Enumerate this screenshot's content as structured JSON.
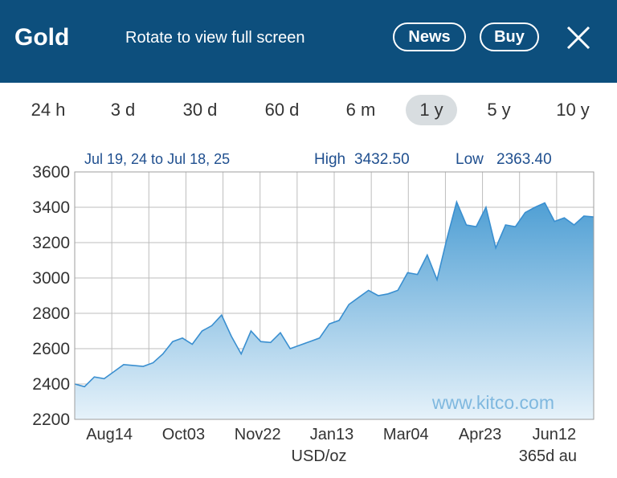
{
  "header": {
    "title": "Gold",
    "hint": "Rotate to view full screen",
    "news_label": "News",
    "buy_label": "Buy",
    "close_icon": "close-icon"
  },
  "ranges": [
    {
      "label": "24 h",
      "active": false
    },
    {
      "label": "3 d",
      "active": false
    },
    {
      "label": "30 d",
      "active": false
    },
    {
      "label": "60 d",
      "active": false
    },
    {
      "label": "6 m",
      "active": false
    },
    {
      "label": "1 y",
      "active": true
    },
    {
      "label": "5 y",
      "active": false
    },
    {
      "label": "10 y",
      "active": false
    }
  ],
  "colors": {
    "header_bg": "#0d4f7d",
    "line": "#3a8fd0",
    "fill_top": "#4f9fd4",
    "fill_bottom": "#e6f2fa",
    "grid": "#bdbdbd",
    "label_blue": "#1f4f8f"
  },
  "chart_data": {
    "type": "area",
    "date_range": "Jul 19, 24 to Jul 18, 25",
    "high_label": "High",
    "high": "3432.50",
    "low_label": "Low",
    "low": "2363.40",
    "watermark": "www.kitco.com",
    "xlabel": "USD/oz",
    "period_note": "365d au",
    "ylim": [
      2200,
      3600
    ],
    "yticks": [
      "3600",
      "3400",
      "3200",
      "3000",
      "2800",
      "2600",
      "2400",
      "2200"
    ],
    "xticks": [
      "Aug14",
      "Oct03",
      "Nov22",
      "Jan13",
      "Mar04",
      "Apr23",
      "Jun12"
    ],
    "grid": true,
    "series": [
      {
        "points": [
          [
            "Jul 19",
            2400
          ],
          [
            "Jul 26",
            2385
          ],
          [
            "Aug 02",
            2440
          ],
          [
            "Aug 09",
            2430
          ],
          [
            "Aug 14",
            2470
          ],
          [
            "Aug 21",
            2510
          ],
          [
            "Aug 28",
            2505
          ],
          [
            "Sep 04",
            2500
          ],
          [
            "Sep 11",
            2520
          ],
          [
            "Sep 18",
            2570
          ],
          [
            "Sep 25",
            2640
          ],
          [
            "Oct 03",
            2660
          ],
          [
            "Oct 10",
            2625
          ],
          [
            "Oct 17",
            2700
          ],
          [
            "Oct 24",
            2730
          ],
          [
            "Oct 30",
            2790
          ],
          [
            "Nov 05",
            2670
          ],
          [
            "Nov 14",
            2570
          ],
          [
            "Nov 22",
            2700
          ],
          [
            "Nov 29",
            2640
          ],
          [
            "Dec 06",
            2635
          ],
          [
            "Dec 12",
            2690
          ],
          [
            "Dec 19",
            2600
          ],
          [
            "Dec 27",
            2620
          ],
          [
            "Jan 06",
            2640
          ],
          [
            "Jan 13",
            2660
          ],
          [
            "Jan 21",
            2740
          ],
          [
            "Jan 28",
            2760
          ],
          [
            "Feb 04",
            2850
          ],
          [
            "Feb 11",
            2890
          ],
          [
            "Feb 18",
            2930
          ],
          [
            "Feb 25",
            2900
          ],
          [
            "Mar 04",
            2910
          ],
          [
            "Mar 11",
            2930
          ],
          [
            "Mar 18",
            3030
          ],
          [
            "Mar 25",
            3020
          ],
          [
            "Apr 01",
            3130
          ],
          [
            "Apr 08",
            2990
          ],
          [
            "Apr 14",
            3220
          ],
          [
            "Apr 22",
            3430
          ],
          [
            "Apr 23",
            3300
          ],
          [
            "Apr 30",
            3290
          ],
          [
            "May 07",
            3400
          ],
          [
            "May 14",
            3170
          ],
          [
            "May 21",
            3300
          ],
          [
            "May 28",
            3290
          ],
          [
            "Jun 04",
            3370
          ],
          [
            "Jun 12",
            3400
          ],
          [
            "Jun 16",
            3425
          ],
          [
            "Jun 24",
            3320
          ],
          [
            "Jul 01",
            3340
          ],
          [
            "Jul 08",
            3300
          ],
          [
            "Jul 14",
            3350
          ],
          [
            "Jul 18",
            3345
          ]
        ]
      }
    ]
  }
}
